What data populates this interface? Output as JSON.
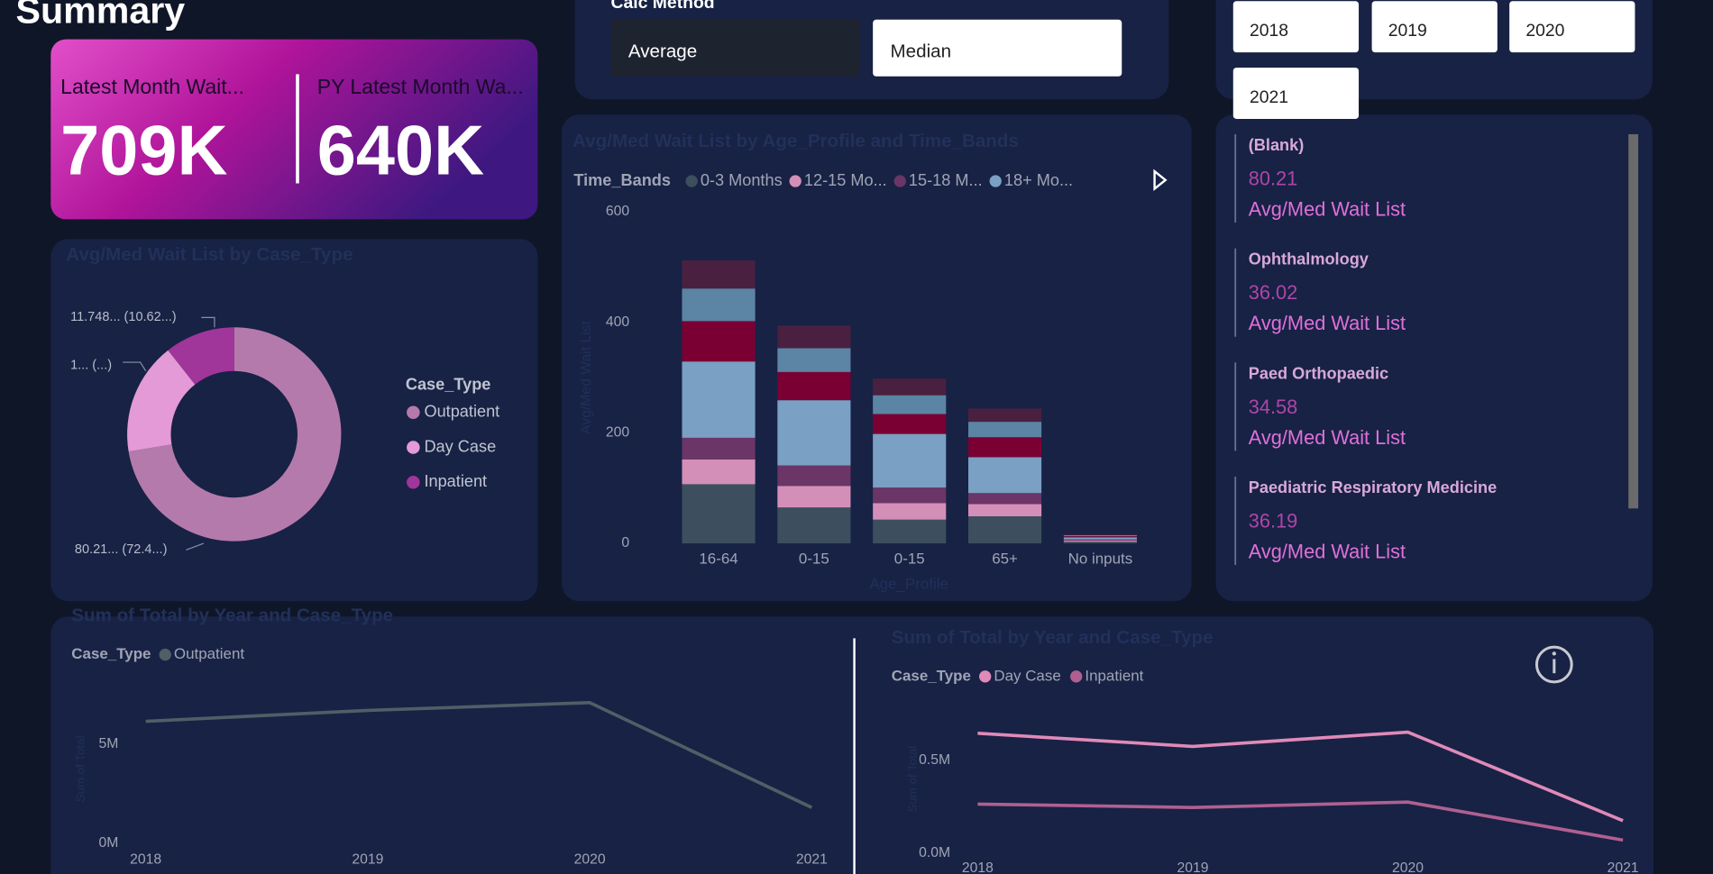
{
  "header": {
    "title": "Summary"
  },
  "kpis": [
    {
      "label": "Latest Month Wait...",
      "value": "709K"
    },
    {
      "label": "PY Latest Month Wa...",
      "value": "640K"
    }
  ],
  "calc_method": {
    "title": "Calc Method",
    "options": [
      "Average",
      "Median"
    ]
  },
  "year_slicer": {
    "options": [
      "2018",
      "2019",
      "2020",
      "2021"
    ]
  },
  "cards": [
    {
      "name": "(Blank)",
      "value": "80.21",
      "label": "Avg/Med Wait List"
    },
    {
      "name": "Ophthalmology",
      "value": "36.02",
      "label": "Avg/Med Wait List"
    },
    {
      "name": "Paed Orthopaedic",
      "value": "34.58",
      "label": "Avg/Med Wait List"
    },
    {
      "name": "Paediatric Respiratory Medicine",
      "value": "36.19",
      "label": "Avg/Med Wait List"
    }
  ],
  "chart_data": [
    {
      "type": "pie",
      "donut": true,
      "title": "Avg/Med Wait List by Case_Type",
      "legend_title": "Case_Type",
      "categories": [
        "Outpatient",
        "Day Case",
        "Inpatient"
      ],
      "values": [
        80.21,
        18.8,
        11.748
      ],
      "value_labels": [
        "80.21... (72.4...)",
        "1... (...)",
        "11.748... (10.62...)"
      ],
      "colors": [
        "#b57aac",
        "#e39ad6",
        "#a0359a"
      ]
    },
    {
      "type": "bar",
      "stacked": true,
      "title": "Avg/Med Wait List by Age_Profile and Time_Bands",
      "legend_title": "Time_Bands",
      "x_label": "Age_Profile",
      "y_label": "Avg/Med Wait List",
      "categories": [
        "16-64",
        "0-15",
        "0-15",
        "65+",
        "No inputs"
      ],
      "series": [
        {
          "name": "0-3 Months",
          "color": "#3d4f5e",
          "values": [
            107,
            65,
            43,
            49,
            3
          ]
        },
        {
          "name": "12-15 Mo...",
          "color": "#d48fb8",
          "values": [
            45,
            39,
            30,
            22,
            2
          ]
        },
        {
          "name": "15-18 M...",
          "color": "#6b3567",
          "values": [
            39,
            37,
            28,
            20,
            2
          ]
        },
        {
          "name": "18+ Mo...",
          "color": "#7aa0c4",
          "values": [
            138,
            118,
            97,
            65,
            4
          ]
        },
        {
          "name": null,
          "color": "#7a0033",
          "values": [
            73,
            51,
            36,
            36,
            2
          ]
        },
        {
          "name": null,
          "color": "#5c84a4",
          "values": [
            59,
            43,
            34,
            28,
            2
          ]
        },
        {
          "name": null,
          "color": "#4a2040",
          "values": [
            51,
            41,
            30,
            24,
            1
          ]
        }
      ],
      "ylim": [
        0,
        600
      ],
      "yticks": [
        0,
        200,
        400,
        600
      ]
    },
    {
      "type": "line",
      "title": "Sum of Total by Year and Case_Type",
      "legend_title": "Case_Type",
      "y_label": "Sum of Total",
      "x": [
        2018,
        2019,
        2020,
        2021
      ],
      "xlim": [
        2018,
        2021
      ],
      "series": [
        {
          "name": "Outpatient",
          "color": "#4f5f66",
          "values": [
            6150000,
            6700000,
            7090000,
            1810000
          ]
        }
      ],
      "ylim": [
        0,
        7500000
      ],
      "yticks": [
        {
          "value": 0,
          "label": "0M"
        },
        {
          "value": 5000000,
          "label": "5M"
        }
      ]
    },
    {
      "type": "line",
      "title": "Sum of Total by Year and Case_Type",
      "legend_title": "Case_Type",
      "y_label": "Sum of Total",
      "x": [
        2018,
        2019,
        2020,
        2021
      ],
      "xlim": [
        2018,
        2021
      ],
      "series": [
        {
          "name": "Day Case",
          "color": "#e08ab8",
          "values": [
            647000,
            576000,
            653000,
            176000
          ]
        },
        {
          "name": "Inpatient",
          "color": "#b06090",
          "values": [
            265000,
            247000,
            276000,
            71000
          ]
        }
      ],
      "ylim": [
        0,
        800000
      ],
      "yticks": [
        {
          "value": 0,
          "label": "0.0M"
        },
        {
          "value": 500000,
          "label": "0.5M"
        }
      ]
    }
  ]
}
